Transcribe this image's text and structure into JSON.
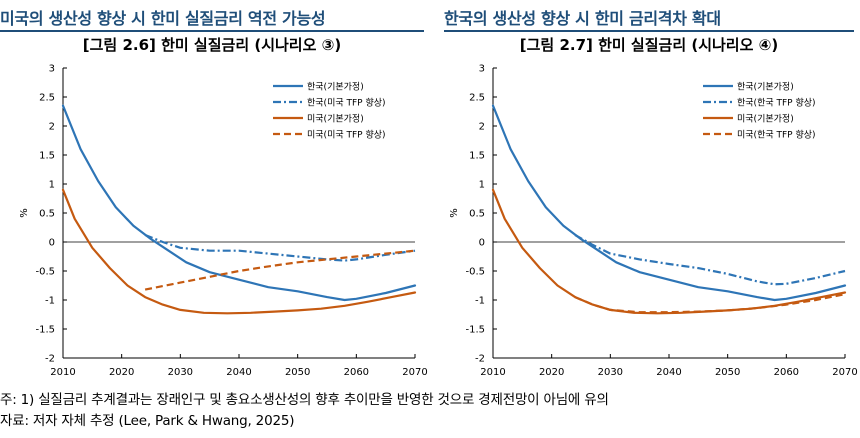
{
  "headers": {
    "left": "미국의 생산성 향상 시 한미 실질금리 역전 가능성",
    "right": "한국의 생산성 향상 시 한미 금리격차 확대"
  },
  "notes": {
    "note1": "주: 1) 실질금리 추계결과는 장래인구 및 총요소생산성의 향후 추이만을 반영한 것으로 경제전망이 아님에 유의",
    "note2": "자료: 저자 자체 추정 (Lee, Park & Hwang, 2025)"
  },
  "colors": {
    "korea": "#2e75b6",
    "us": "#c55a11",
    "header": "#1f4e79"
  },
  "chart_data": [
    {
      "type": "line",
      "title": "[그림 2.6] 한미 실질금리 (시나리오 ③)",
      "ylabel": "%",
      "xlim": [
        2010,
        2070
      ],
      "ylim": [
        -2,
        3
      ],
      "xticks": [
        2010,
        2020,
        2030,
        2040,
        2050,
        2060,
        2070
      ],
      "yticks": [
        -2,
        -1.5,
        -1,
        -0.5,
        0,
        0.5,
        1,
        1.5,
        2,
        2.5,
        3
      ],
      "legend_position": "top-right",
      "series": [
        {
          "name": "한국(기본가정)",
          "color": "#2e75b6",
          "style": "solid",
          "x": [
            2010,
            2013,
            2016,
            2019,
            2022,
            2025,
            2028,
            2031,
            2035,
            2040,
            2045,
            2050,
            2055,
            2058,
            2060,
            2065,
            2070
          ],
          "y": [
            2.35,
            1.6,
            1.05,
            0.6,
            0.28,
            0.05,
            -0.15,
            -0.35,
            -0.52,
            -0.65,
            -0.78,
            -0.85,
            -0.95,
            -1.0,
            -0.98,
            -0.88,
            -0.75
          ]
        },
        {
          "name": "한국(미국 TFP 향상)",
          "color": "#2e75b6",
          "style": "dashdot",
          "x": [
            2024,
            2027,
            2030,
            2035,
            2040,
            2045,
            2050,
            2055,
            2058,
            2060,
            2065,
            2070
          ],
          "y": [
            0.12,
            0.0,
            -0.1,
            -0.15,
            -0.15,
            -0.2,
            -0.25,
            -0.3,
            -0.32,
            -0.3,
            -0.22,
            -0.15
          ]
        },
        {
          "name": "미국(기본가정)",
          "color": "#c55a11",
          "style": "solid",
          "x": [
            2010,
            2012,
            2015,
            2018,
            2021,
            2024,
            2027,
            2030,
            2034,
            2038,
            2042,
            2046,
            2050,
            2054,
            2058,
            2062,
            2066,
            2070
          ],
          "y": [
            0.9,
            0.4,
            -0.1,
            -0.45,
            -0.75,
            -0.95,
            -1.08,
            -1.17,
            -1.22,
            -1.23,
            -1.22,
            -1.2,
            -1.18,
            -1.15,
            -1.1,
            -1.03,
            -0.95,
            -0.87
          ]
        },
        {
          "name": "미국(미국 TFP 향상)",
          "color": "#c55a11",
          "style": "dash",
          "x": [
            2024,
            2027,
            2030,
            2035,
            2040,
            2045,
            2050,
            2055,
            2060,
            2065,
            2070
          ],
          "y": [
            -0.82,
            -0.76,
            -0.7,
            -0.6,
            -0.5,
            -0.42,
            -0.35,
            -0.3,
            -0.25,
            -0.2,
            -0.15
          ]
        }
      ]
    },
    {
      "type": "line",
      "title": "[그림 2.7] 한미 실질금리 (시나리오 ④)",
      "ylabel": "%",
      "xlim": [
        2010,
        2070
      ],
      "ylim": [
        -2,
        3
      ],
      "xticks": [
        2010,
        2020,
        2030,
        2040,
        2050,
        2060,
        2070
      ],
      "yticks": [
        -2,
        -1.5,
        -1,
        -0.5,
        0,
        0.5,
        1,
        1.5,
        2,
        2.5,
        3
      ],
      "legend_position": "top-right",
      "series": [
        {
          "name": "한국(기본가정)",
          "color": "#2e75b6",
          "style": "solid",
          "x": [
            2010,
            2013,
            2016,
            2019,
            2022,
            2025,
            2028,
            2031,
            2035,
            2040,
            2045,
            2050,
            2055,
            2058,
            2060,
            2065,
            2070
          ],
          "y": [
            2.35,
            1.6,
            1.05,
            0.6,
            0.28,
            0.05,
            -0.15,
            -0.35,
            -0.52,
            -0.65,
            -0.78,
            -0.85,
            -0.95,
            -1.0,
            -0.98,
            -0.88,
            -0.75
          ]
        },
        {
          "name": "한국(한국 TFP 향상)",
          "color": "#2e75b6",
          "style": "dashdot",
          "x": [
            2024,
            2027,
            2030,
            2035,
            2040,
            2045,
            2050,
            2055,
            2058,
            2060,
            2065,
            2070
          ],
          "y": [
            0.12,
            -0.05,
            -0.2,
            -0.3,
            -0.38,
            -0.45,
            -0.55,
            -0.68,
            -0.73,
            -0.72,
            -0.62,
            -0.5
          ]
        },
        {
          "name": "미국(기본가정)",
          "color": "#c55a11",
          "style": "solid",
          "x": [
            2010,
            2012,
            2015,
            2018,
            2021,
            2024,
            2027,
            2030,
            2034,
            2038,
            2042,
            2046,
            2050,
            2054,
            2058,
            2062,
            2066,
            2070
          ],
          "y": [
            0.9,
            0.4,
            -0.1,
            -0.45,
            -0.75,
            -0.95,
            -1.08,
            -1.17,
            -1.22,
            -1.23,
            -1.22,
            -1.2,
            -1.18,
            -1.15,
            -1.1,
            -1.03,
            -0.95,
            -0.87
          ]
        },
        {
          "name": "미국(한국 TFP 향상)",
          "color": "#c55a11",
          "style": "dash",
          "x": [
            2024,
            2027,
            2030,
            2035,
            2040,
            2045,
            2050,
            2055,
            2060,
            2065,
            2070
          ],
          "y": [
            -0.95,
            -1.08,
            -1.17,
            -1.21,
            -1.21,
            -1.2,
            -1.18,
            -1.14,
            -1.08,
            -1.0,
            -0.9
          ]
        }
      ]
    }
  ]
}
